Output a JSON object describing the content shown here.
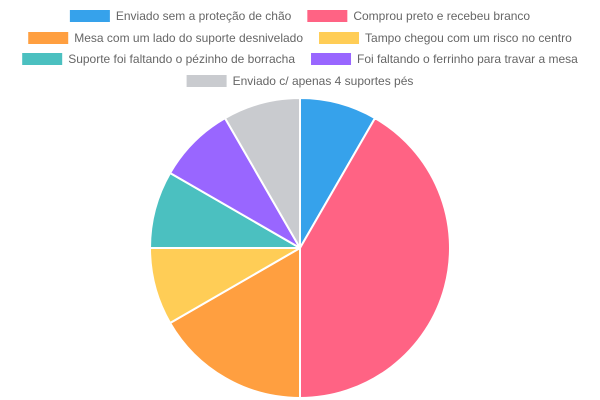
{
  "chart_data": {
    "type": "pie",
    "title": "",
    "legend_position": "top",
    "categories": [
      "Enviado sem a proteção de chão",
      "Comprou preto e recebeu branco",
      "Mesa com um lado do suporte desnivelado",
      "Tampo chegou com um risco no centro",
      "Suporte foi faltando o pézinho de borracha",
      "Foi faltando o ferrinho para travar a mesa",
      "Enviado c/ apenas 4 suportes pés"
    ],
    "values": [
      1,
      5,
      2,
      1,
      1,
      1,
      1
    ],
    "colors": [
      "#36a2eb",
      "#ff6384",
      "#ff9f40",
      "#ffcd56",
      "#4bc0c0",
      "#9966ff",
      "#c9cbcf"
    ]
  }
}
